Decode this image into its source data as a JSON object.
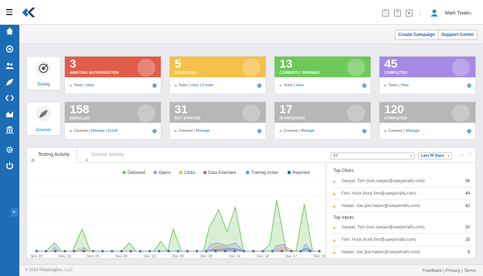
{
  "header": {
    "user_name": "Mark Twain",
    "help_label": "?",
    "user_chevron": "▾",
    "divider": "|"
  },
  "actions": {
    "create_campaign": "Create Campaign",
    "support_center": "Support Center"
  },
  "testing": {
    "label": "Testing",
    "cards": [
      {
        "value": "3",
        "title": "AWAITING AUTHORIZATION",
        "color": "#e15d49",
        "links": [
          "Tests",
          "View"
        ]
      },
      {
        "value": "5",
        "title": "SCHEDULED",
        "color": "#f5c04a",
        "links": [
          "Tests",
          "View",
          "Create"
        ]
      },
      {
        "value": "13",
        "title": "CURRENTLY RUNNING",
        "color": "#6ec85a",
        "links": [
          "Tests",
          "View"
        ]
      },
      {
        "value": "45",
        "title": "COMPLETED",
        "color": "#a689e3",
        "links": [
          "Tests",
          "View"
        ]
      }
    ]
  },
  "courses": {
    "label": "Courses",
    "cards": [
      {
        "value": "158",
        "title": "ENROLLED",
        "color": "#b7b7b7",
        "links": [
          "Courses",
          "Manage",
          "Enroll"
        ]
      },
      {
        "value": "31",
        "title": "NOT STARTED",
        "color": "#b7b7b7",
        "links": [
          "Courses",
          "Manage"
        ]
      },
      {
        "value": "17",
        "title": "IN PROGRESS",
        "color": "#b7b7b7",
        "links": [
          "Courses",
          "Manage"
        ]
      },
      {
        "value": "120",
        "title": "COMPLETED",
        "color": "#b7b7b7",
        "links": [
          "Courses",
          "Manage"
        ]
      }
    ]
  },
  "activity": {
    "tabs": [
      "Testing Activity",
      "Course Activity"
    ],
    "filter_value": "All",
    "range_value": "Last 30 Days",
    "filter_arrow": "▼",
    "range_arrow": "▼",
    "minimize_glyph": "—",
    "expand_glyph": "⛶"
  },
  "chart_data": {
    "type": "area",
    "x": [
      "Nov 20",
      "Nov 23",
      "Nov 26",
      "Nov 29",
      "Dec 02",
      "Dec 05",
      "Dec 08",
      "Dec 11",
      "Dec 14",
      "Dec 17",
      "Dec 20"
    ],
    "series": [
      {
        "name": "Delivered",
        "color": "#6cc35a"
      },
      {
        "name": "Opens",
        "color": "#9b8de0"
      },
      {
        "name": "Clicks",
        "color": "#f0ad4e"
      },
      {
        "name": "Data Extended",
        "color": "#d9534f"
      },
      {
        "name": "Training Action",
        "color": "#4a90d9"
      },
      {
        "name": "Reported",
        "color": "#2d5fa0"
      }
    ],
    "legend_position": "top",
    "grid": true
  },
  "top_clicks": {
    "title": "Top Clicks",
    "items": [
      {
        "name": "Sawyer, Tom (tom.sawyer@sawyerrafts.com)",
        "count": "56"
      },
      {
        "name": "Finn, Huck (huck.finn@sawyerrafts.com)",
        "count": "44"
      },
      {
        "name": "Harper, Joe (joe.harper@sawyerrafts.com)",
        "count": "42"
      }
    ]
  },
  "top_inputs": {
    "title": "Top Inputs",
    "items": [
      {
        "name": "Sawyer, Tom (tom.sawyer@sawyerrafts.com)",
        "count": "20"
      },
      {
        "name": "Finn, Huck (huck.finn@sawyerrafts.com)",
        "count": "15"
      },
      {
        "name": "Harper, Joe (joe.harper@sawyerrafts.com)",
        "count": "9"
      }
    ]
  },
  "footer": {
    "copyright": "© 2019 PhishingBox, LLC.",
    "links": [
      "Feedback",
      "Privacy",
      "Terms"
    ]
  },
  "icons": [
    "menu-icon",
    "logo-icon",
    "fullscreen-icon",
    "help-icon",
    "alert-icon",
    "user-icon",
    "dashboard-icon",
    "target-icon",
    "users-icon",
    "courses-icon",
    "code-icon",
    "reports-icon",
    "institution-icon",
    "settings-icon",
    "power-icon",
    "collapse-icon"
  ]
}
